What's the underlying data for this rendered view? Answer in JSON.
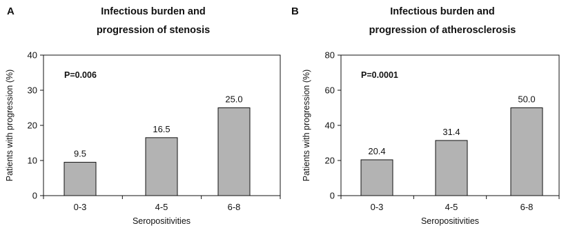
{
  "chart_data": [
    {
      "type": "bar",
      "panel_letter": "A",
      "title": [
        "Infectious burden and",
        "progression of stenosis"
      ],
      "xlabel": "Seropositivities",
      "ylabel": "Patients with progression (%)",
      "annotation": "P=0.006",
      "categories": [
        "0-3",
        "4-5",
        "6-8"
      ],
      "values": [
        9.5,
        16.5,
        25.0
      ],
      "value_labels": [
        "9.5",
        "16.5",
        "25.0"
      ],
      "ylim": [
        0,
        40
      ],
      "yticks": [
        0,
        10,
        20,
        30,
        40
      ],
      "bar_color": "#b3b3b3",
      "grid": false
    },
    {
      "type": "bar",
      "panel_letter": "B",
      "title": [
        "Infectious burden and",
        "progression of atherosclerosis"
      ],
      "xlabel": "Seropositivities",
      "ylabel": "Patients with progression (%)",
      "annotation": "P=0.0001",
      "categories": [
        "0-3",
        "4-5",
        "6-8"
      ],
      "values": [
        20.4,
        31.4,
        50.0
      ],
      "value_labels": [
        "20.4",
        "31.4",
        "50.0"
      ],
      "ylim": [
        0,
        80
      ],
      "yticks": [
        0,
        20,
        40,
        60,
        80
      ],
      "bar_color": "#b3b3b3",
      "grid": false
    }
  ]
}
